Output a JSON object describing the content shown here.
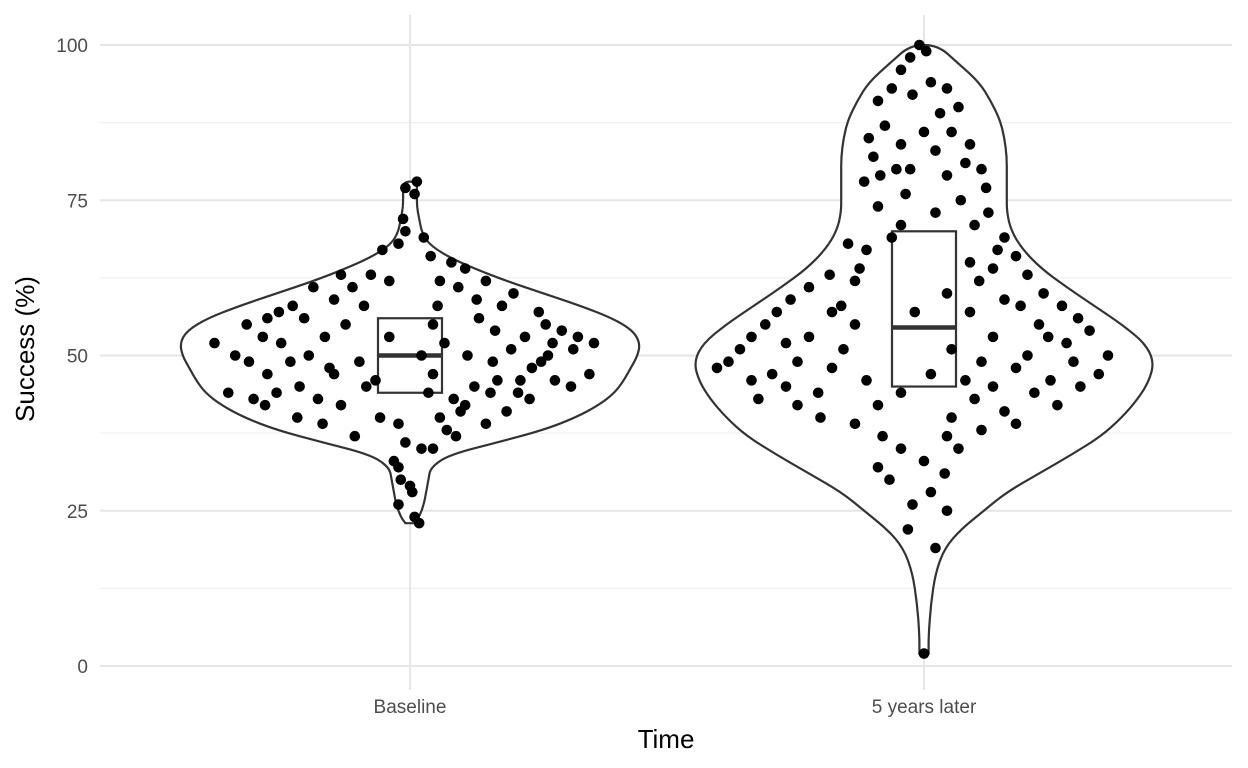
{
  "chart_data": {
    "type": "violin",
    "xlabel": "Time",
    "ylabel": "Success (%)",
    "ylim": [
      0,
      100
    ],
    "yticks": [
      0,
      25,
      50,
      75,
      100
    ],
    "grid": true,
    "colors": {
      "violin_outline": "#333333",
      "box_fill": "#ffffff",
      "points": "#000000"
    },
    "categories": [
      "Baseline",
      "5 years later"
    ],
    "groups": [
      {
        "category": "Baseline",
        "box": {
          "q1": 44,
          "median": 50,
          "q3": 56
        },
        "density_profile": [
          [
            23,
            0.02
          ],
          [
            24,
            0.04
          ],
          [
            26,
            0.06
          ],
          [
            28,
            0.07
          ],
          [
            30,
            0.08
          ],
          [
            32,
            0.09
          ],
          [
            34,
            0.17
          ],
          [
            36,
            0.38
          ],
          [
            38,
            0.58
          ],
          [
            40,
            0.72
          ],
          [
            42,
            0.82
          ],
          [
            44,
            0.89
          ],
          [
            46,
            0.93
          ],
          [
            48,
            0.96
          ],
          [
            50,
            0.99
          ],
          [
            52,
            1.0
          ],
          [
            54,
            0.97
          ],
          [
            56,
            0.88
          ],
          [
            58,
            0.74
          ],
          [
            60,
            0.58
          ],
          [
            62,
            0.42
          ],
          [
            64,
            0.28
          ],
          [
            66,
            0.16
          ],
          [
            68,
            0.08
          ],
          [
            70,
            0.05
          ],
          [
            72,
            0.04
          ],
          [
            74,
            0.03
          ],
          [
            76,
            0.03
          ],
          [
            78,
            0.03
          ]
        ],
        "points": [
          [
            0.03,
            78
          ],
          [
            -0.02,
            77
          ],
          [
            0.02,
            76
          ],
          [
            -0.03,
            72
          ],
          [
            0.06,
            69
          ],
          [
            -0.05,
            68
          ],
          [
            -0.12,
            67
          ],
          [
            0.09,
            66
          ],
          [
            -0.02,
            70
          ],
          [
            0.18,
            65
          ],
          [
            0.24,
            64
          ],
          [
            -0.3,
            63
          ],
          [
            -0.17,
            63
          ],
          [
            0.13,
            62
          ],
          [
            0.33,
            62
          ],
          [
            -0.42,
            61
          ],
          [
            0.21,
            61
          ],
          [
            0.45,
            60
          ],
          [
            -0.51,
            58
          ],
          [
            -0.33,
            59
          ],
          [
            -0.2,
            58
          ],
          [
            0.4,
            58
          ],
          [
            0.56,
            57
          ],
          [
            -0.62,
            56
          ],
          [
            -0.46,
            56
          ],
          [
            0.3,
            56
          ],
          [
            0.59,
            55
          ],
          [
            -0.71,
            55
          ],
          [
            -0.28,
            55
          ],
          [
            0.37,
            54
          ],
          [
            0.66,
            54
          ],
          [
            0.73,
            53
          ],
          [
            -0.64,
            53
          ],
          [
            -0.37,
            53
          ],
          [
            0.5,
            53
          ],
          [
            0.8,
            52
          ],
          [
            -0.85,
            52
          ],
          [
            -0.56,
            52
          ],
          [
            0.15,
            52
          ],
          [
            0.44,
            51
          ],
          [
            0.71,
            51
          ],
          [
            -0.76,
            50
          ],
          [
            -0.44,
            50
          ],
          [
            0.25,
            50
          ],
          [
            0.6,
            50
          ],
          [
            -0.7,
            49
          ],
          [
            -0.22,
            49
          ],
          [
            0.36,
            49
          ],
          [
            0.53,
            48
          ],
          [
            0.78,
            47
          ],
          [
            -0.62,
            47
          ],
          [
            -0.33,
            47
          ],
          [
            0.1,
            47
          ],
          [
            0.48,
            46
          ],
          [
            0.63,
            46
          ],
          [
            -0.48,
            45
          ],
          [
            -0.19,
            45
          ],
          [
            0.28,
            45
          ],
          [
            0.7,
            45
          ],
          [
            -0.79,
            44
          ],
          [
            -0.58,
            44
          ],
          [
            0.08,
            44
          ],
          [
            0.35,
            44
          ],
          [
            -0.68,
            43
          ],
          [
            -0.4,
            43
          ],
          [
            0.19,
            43
          ],
          [
            0.52,
            43
          ],
          [
            -0.63,
            42
          ],
          [
            -0.3,
            42
          ],
          [
            0.24,
            42
          ],
          [
            0.42,
            41
          ],
          [
            0.22,
            41
          ],
          [
            -0.49,
            40
          ],
          [
            -0.13,
            40
          ],
          [
            0.13,
            40
          ],
          [
            0.33,
            39
          ],
          [
            -0.38,
            39
          ],
          [
            -0.05,
            39
          ],
          [
            0.16,
            38
          ],
          [
            -0.24,
            37
          ],
          [
            0.2,
            37
          ],
          [
            -0.02,
            36
          ],
          [
            0.1,
            35
          ],
          [
            -0.07,
            33
          ],
          [
            0.05,
            35
          ],
          [
            -0.04,
            30
          ],
          [
            0.0,
            29
          ],
          [
            -0.05,
            26
          ],
          [
            0.02,
            24
          ],
          [
            0.04,
            23
          ],
          [
            -0.05,
            32
          ],
          [
            0.01,
            28
          ],
          [
            -0.57,
            57
          ],
          [
            0.62,
            52
          ],
          [
            -0.25,
            61
          ],
          [
            0.47,
            44
          ],
          [
            -0.09,
            53
          ],
          [
            0.29,
            59
          ],
          [
            -0.15,
            46
          ],
          [
            0.1,
            55
          ],
          [
            -0.35,
            48
          ],
          [
            0.57,
            49
          ],
          [
            0.12,
            58
          ],
          [
            -0.52,
            49
          ],
          [
            -0.09,
            62
          ],
          [
            0.05,
            50
          ],
          [
            0.38,
            46
          ]
        ]
      },
      {
        "category": "5 years later",
        "box": {
          "q1": 45,
          "median": 54.5,
          "q3": 70
        },
        "density_profile": [
          [
            2,
            0.02
          ],
          [
            5,
            0.02
          ],
          [
            10,
            0.03
          ],
          [
            15,
            0.05
          ],
          [
            19,
            0.09
          ],
          [
            22,
            0.16
          ],
          [
            25,
            0.26
          ],
          [
            28,
            0.36
          ],
          [
            31,
            0.5
          ],
          [
            34,
            0.64
          ],
          [
            37,
            0.77
          ],
          [
            40,
            0.86
          ],
          [
            43,
            0.93
          ],
          [
            46,
            0.98
          ],
          [
            49,
            1.0
          ],
          [
            52,
            0.96
          ],
          [
            55,
            0.86
          ],
          [
            58,
            0.74
          ],
          [
            61,
            0.62
          ],
          [
            64,
            0.51
          ],
          [
            67,
            0.43
          ],
          [
            70,
            0.38
          ],
          [
            73,
            0.36
          ],
          [
            76,
            0.36
          ],
          [
            79,
            0.36
          ],
          [
            82,
            0.36
          ],
          [
            85,
            0.35
          ],
          [
            88,
            0.33
          ],
          [
            91,
            0.29
          ],
          [
            94,
            0.24
          ],
          [
            97,
            0.15
          ],
          [
            100,
            0.06
          ]
        ],
        "points": [
          [
            -0.02,
            100
          ],
          [
            0.01,
            99
          ],
          [
            -0.06,
            98
          ],
          [
            -0.1,
            96
          ],
          [
            0.03,
            94
          ],
          [
            -0.14,
            93
          ],
          [
            0.1,
            93
          ],
          [
            -0.2,
            91
          ],
          [
            0.15,
            90
          ],
          [
            -0.05,
            92
          ],
          [
            0.07,
            89
          ],
          [
            -0.17,
            87
          ],
          [
            0.12,
            86
          ],
          [
            -0.24,
            85
          ],
          [
            0.2,
            84
          ],
          [
            -0.1,
            84
          ],
          [
            0.05,
            83
          ],
          [
            -0.22,
            82
          ],
          [
            0.18,
            81
          ],
          [
            -0.06,
            80
          ],
          [
            0.25,
            80
          ],
          [
            -0.19,
            79
          ],
          [
            0.1,
            79
          ],
          [
            0.27,
            77
          ],
          [
            -0.26,
            78
          ],
          [
            -0.08,
            76
          ],
          [
            0.16,
            75
          ],
          [
            -0.2,
            74
          ],
          [
            0.05,
            73
          ],
          [
            -0.1,
            71
          ],
          [
            0.22,
            71
          ],
          [
            0.35,
            69
          ],
          [
            -0.33,
            68
          ],
          [
            0.32,
            67
          ],
          [
            -0.25,
            67
          ],
          [
            0.4,
            66
          ],
          [
            0.2,
            65
          ],
          [
            -0.41,
            63
          ],
          [
            0.45,
            63
          ],
          [
            -0.3,
            62
          ],
          [
            0.24,
            62
          ],
          [
            -0.5,
            61
          ],
          [
            0.52,
            60
          ],
          [
            -0.58,
            59
          ],
          [
            0.35,
            59
          ],
          [
            0.6,
            58
          ],
          [
            -0.64,
            57
          ],
          [
            -0.4,
            57
          ],
          [
            0.2,
            57
          ],
          [
            0.67,
            56
          ],
          [
            -0.69,
            55
          ],
          [
            -0.3,
            55
          ],
          [
            0.5,
            55
          ],
          [
            0.72,
            54
          ],
          [
            -0.75,
            53
          ],
          [
            -0.5,
            53
          ],
          [
            0.3,
            53
          ],
          [
            0.62,
            52
          ],
          [
            -0.8,
            51
          ],
          [
            -0.35,
            51
          ],
          [
            0.12,
            51
          ],
          [
            0.45,
            50
          ],
          [
            0.8,
            50
          ],
          [
            -0.85,
            49
          ],
          [
            -0.55,
            49
          ],
          [
            0.25,
            49
          ],
          [
            0.65,
            49
          ],
          [
            -0.9,
            48
          ],
          [
            -0.4,
            48
          ],
          [
            0.4,
            48
          ],
          [
            0.76,
            47
          ],
          [
            -0.66,
            47
          ],
          [
            0.03,
            47
          ],
          [
            0.55,
            46
          ],
          [
            -0.75,
            46
          ],
          [
            -0.25,
            46
          ],
          [
            0.3,
            45
          ],
          [
            0.68,
            45
          ],
          [
            -0.6,
            45
          ],
          [
            -0.1,
            44
          ],
          [
            0.48,
            44
          ],
          [
            -0.72,
            43
          ],
          [
            0.22,
            43
          ],
          [
            0.58,
            42
          ],
          [
            -0.55,
            42
          ],
          [
            -0.2,
            42
          ],
          [
            0.35,
            41
          ],
          [
            -0.45,
            40
          ],
          [
            0.12,
            40
          ],
          [
            0.4,
            39
          ],
          [
            -0.3,
            39
          ],
          [
            0.25,
            38
          ],
          [
            -0.18,
            37
          ],
          [
            0.1,
            37
          ],
          [
            -0.1,
            35
          ],
          [
            0.15,
            35
          ],
          [
            0.0,
            33
          ],
          [
            -0.2,
            32
          ],
          [
            0.09,
            31
          ],
          [
            -0.15,
            30
          ],
          [
            0.03,
            28
          ],
          [
            -0.05,
            26
          ],
          [
            0.1,
            25
          ],
          [
            -0.07,
            22
          ],
          [
            0.05,
            19
          ],
          [
            0.0,
            2
          ],
          [
            -0.28,
            64
          ],
          [
            0.28,
            73
          ],
          [
            -0.36,
            58
          ],
          [
            0.3,
            64
          ],
          [
            -0.14,
            69
          ],
          [
            0.1,
            60
          ],
          [
            -0.6,
            52
          ],
          [
            0.54,
            53
          ],
          [
            -0.46,
            44
          ],
          [
            0.18,
            46
          ],
          [
            -0.04,
            57
          ],
          [
            0.42,
            58
          ],
          [
            -0.12,
            80
          ],
          [
            0.0,
            86
          ]
        ]
      }
    ]
  }
}
